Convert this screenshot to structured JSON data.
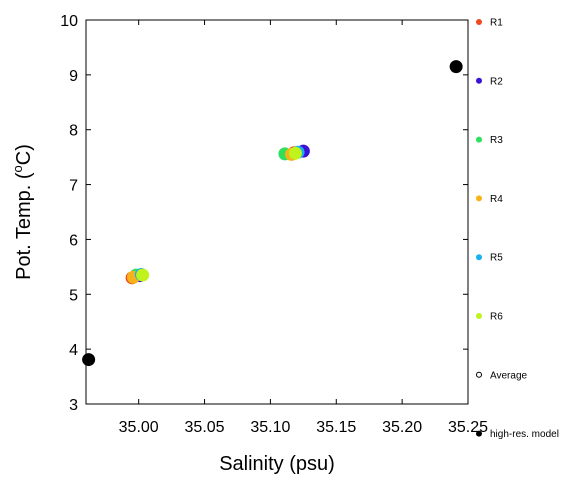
{
  "chart_data": {
    "type": "scatter",
    "xlabel": "Salinity (psu)",
    "ylabel_parts": {
      "before": "Pot. Temp. (",
      "sup": "o",
      "after": "C)"
    },
    "xlim": [
      34.96,
      35.25
    ],
    "ylim": [
      3,
      10
    ],
    "xticks": [
      "35.00",
      "35.05",
      "35.10",
      "35.15",
      "35.20",
      "35.25"
    ],
    "yticks": [
      "3",
      "4",
      "5",
      "6",
      "7",
      "8",
      "9",
      "10"
    ],
    "grid": false,
    "legend_position": "right",
    "series": [
      {
        "name": "R1",
        "color": "#ef4a1f",
        "points": [
          [
            34.995,
            5.3
          ],
          [
            35.118,
            7.58
          ]
        ]
      },
      {
        "name": "R2",
        "color": "#3b12d6",
        "points": [
          [
            35.001,
            5.34
          ],
          [
            35.125,
            7.61
          ]
        ]
      },
      {
        "name": "R3",
        "color": "#2ee05c",
        "points": [
          [
            34.998,
            5.35
          ],
          [
            35.111,
            7.56
          ]
        ]
      },
      {
        "name": "R4",
        "color": "#f7b21a",
        "points": [
          [
            34.996,
            5.31
          ],
          [
            35.116,
            7.55
          ]
        ]
      },
      {
        "name": "R5",
        "color": "#19b0f0",
        "points": [
          [
            35.002,
            5.36
          ],
          [
            35.121,
            7.59
          ]
        ]
      },
      {
        "name": "R6",
        "color": "#c0f21c",
        "points": [
          [
            35.003,
            5.35
          ],
          [
            35.119,
            7.57
          ]
        ]
      }
    ],
    "average": {
      "name": "Average"
    },
    "high_res": {
      "name": "high-res. model",
      "color": "#000000",
      "points": [
        [
          34.962,
          3.81
        ],
        [
          35.241,
          9.15
        ]
      ]
    }
  }
}
